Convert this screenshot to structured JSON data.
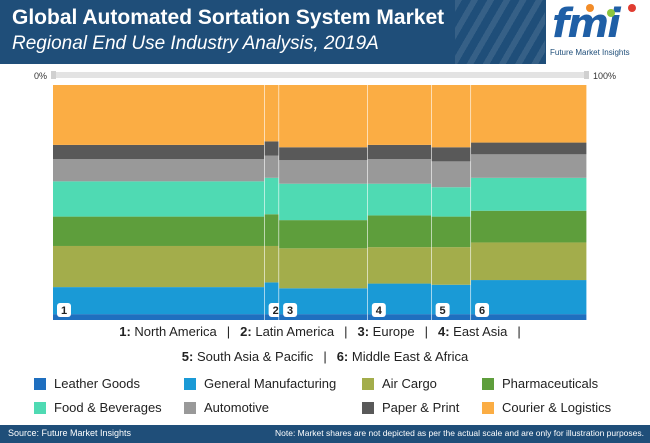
{
  "header": {
    "title": "Global Automated Sortation System Market",
    "subtitle": "Regional End Use Industry Analysis, 2019A"
  },
  "logo": {
    "text": "fmi",
    "tagline": "Future Market Insights"
  },
  "footer": {
    "source": "Source: Future Market Insights",
    "note": "Note: Market shares are not depicted as per the actual scale and are only for illustration purposes."
  },
  "colors": {
    "header_bg": "#1f4e79",
    "leather": "#1f6fbf",
    "general_manufacturing": "#1a9ad6",
    "air_cargo": "#a3ad4b",
    "pharmaceuticals": "#5e9e3c",
    "food_beverages": "#4fdab3",
    "automotive": "#999999",
    "paper_print": "#595959",
    "courier_logistics": "#fbad44"
  },
  "regions_text": {
    "line1": [
      {
        "num": "1:",
        "name": "North America"
      },
      {
        "num": "2:",
        "name": "Latin America"
      },
      {
        "num": "3:",
        "name": "Europe"
      },
      {
        "num": "4:",
        "name": "East Asia"
      }
    ],
    "line2": [
      {
        "num": "5:",
        "name": "South Asia & Pacific"
      },
      {
        "num": "6:",
        "name": "Middle East & Africa"
      }
    ],
    "separator": "|"
  },
  "chart_data": {
    "type": "bar",
    "stacked": "100%",
    "variable_width": true,
    "top_axis": {
      "min_label": "0%",
      "max_label": "100%"
    },
    "categories": [
      "1",
      "2",
      "3",
      "4",
      "5",
      "6"
    ],
    "widths": [
      36.5,
      2.5,
      15.3,
      11.0,
      6.8,
      20.0
    ],
    "series": [
      {
        "name": "Leather Goods",
        "color": "#1f6fbf",
        "values": [
          2.5,
          2.5,
          2.5,
          2.5,
          2.5,
          2.5
        ]
      },
      {
        "name": "General Manufacturing",
        "color": "#1a9ad6",
        "values": [
          11.5,
          13.5,
          11.0,
          13.0,
          12.5,
          14.5
        ]
      },
      {
        "name": "Air Cargo",
        "color": "#a3ad4b",
        "values": [
          17.5,
          15.5,
          17.0,
          15.5,
          16.0,
          16.0
        ]
      },
      {
        "name": "Pharmaceuticals",
        "color": "#5e9e3c",
        "values": [
          12.5,
          13.5,
          12.0,
          13.5,
          13.0,
          13.5
        ]
      },
      {
        "name": "Food & Beverages",
        "color": "#4fdab3",
        "values": [
          15.0,
          15.5,
          15.5,
          13.5,
          12.5,
          14.0
        ]
      },
      {
        "name": "Automotive",
        "color": "#999999",
        "values": [
          9.5,
          9.5,
          10.0,
          10.5,
          11.0,
          10.0
        ]
      },
      {
        "name": "Paper & Print",
        "color": "#595959",
        "values": [
          6.0,
          6.0,
          5.5,
          6.0,
          6.0,
          5.0
        ]
      },
      {
        "name": "Courier & Logistics",
        "color": "#fbad44",
        "values": [
          25.5,
          24.0,
          26.5,
          25.5,
          26.5,
          24.5
        ]
      }
    ]
  }
}
